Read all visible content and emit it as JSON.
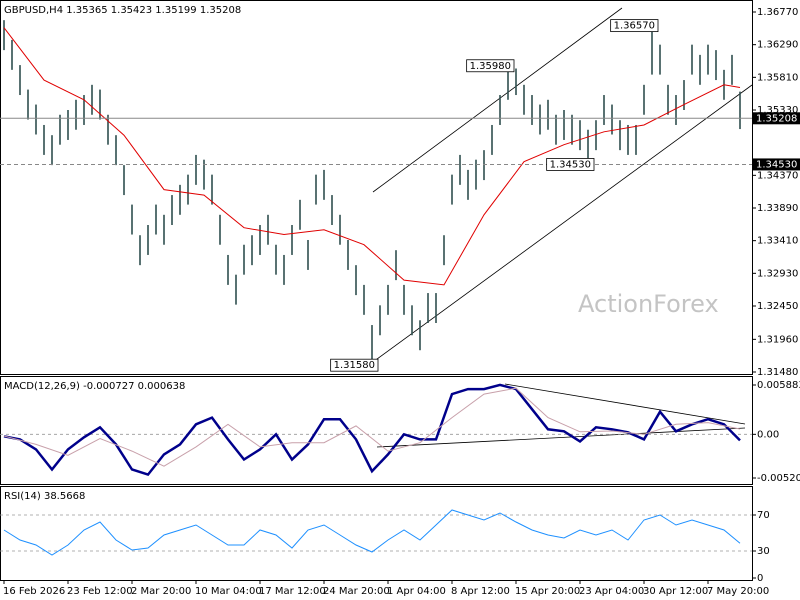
{
  "chart_data": [
    {
      "type": "hilo",
      "title": "GBPUSD,H4  1.35365 1.35423 1.35199 1.35208",
      "watermark": "ActionForex",
      "color": "#2f4f4f",
      "categories": [
        "16 Feb 2026",
        null,
        null,
        null,
        null,
        null,
        null,
        null,
        "23 Feb 12:00",
        null,
        null,
        null,
        null,
        null,
        null,
        null,
        "2 Mar 20:00",
        null,
        null,
        null,
        null,
        null,
        null,
        null,
        "10 Mar 04:00",
        null,
        null,
        null,
        null,
        null,
        null,
        null,
        "17 Mar 12:00",
        null,
        null,
        null,
        null,
        null,
        null,
        null,
        "24 Mar 20:00",
        null,
        null,
        null,
        null,
        null,
        null,
        null,
        "1 Apr 04:00",
        null,
        null,
        null,
        null,
        null,
        null,
        null,
        "8 Apr 12:00",
        null,
        null,
        null,
        null,
        null,
        null,
        null,
        "15 Apr 20:00",
        null,
        null,
        null,
        null,
        null,
        null,
        null,
        "23 Apr 04:00",
        null,
        null,
        null,
        null,
        null,
        null,
        null,
        "30 Apr 12:00",
        null,
        null,
        null,
        null,
        null,
        null,
        null,
        "7 May 20:00",
        null,
        null,
        null,
        null
      ],
      "high": [
        1.3665,
        1.3636,
        1.3599,
        1.3563,
        1.3541,
        1.3511,
        1.3496,
        1.3526,
        1.3533,
        1.3548,
        1.3555,
        1.357,
        1.3563,
        1.3526,
        1.3496,
        1.3452,
        1.3394,
        1.3349,
        1.3364,
        1.3394,
        1.3379,
        1.3408,
        1.3423,
        1.3438,
        1.3467,
        1.346,
        1.3438,
        1.3379,
        1.332,
        1.3291,
        1.3335,
        1.3349,
        1.3364,
        1.3379,
        1.3335,
        1.332,
        1.3364,
        1.3401,
        1.3342,
        1.3438,
        1.3445,
        1.3408,
        1.3379,
        1.3342,
        1.3305,
        1.3276,
        1.3217,
        1.3246,
        1.3276,
        1.3327,
        1.3276,
        1.3246,
        1.3224,
        1.3264,
        1.3264,
        1.3349,
        1.3438,
        1.3467,
        1.3445,
        1.346,
        1.3474,
        1.3511,
        1.3555,
        1.3598,
        1.3594,
        1.357,
        1.3555,
        1.3541,
        1.3548,
        1.3526,
        1.3533,
        1.3526,
        1.3518,
        1.3504,
        1.3518,
        1.3555,
        1.3541,
        1.3518,
        1.3511,
        1.3511,
        1.357,
        1.3657,
        1.3629,
        1.357,
        1.3555,
        1.3577,
        1.3629,
        1.3614,
        1.3629,
        1.3621,
        1.3592,
        1.3614,
        1.356
      ],
      "low": [
        1.3621,
        1.3592,
        1.3555,
        1.3519,
        1.3497,
        1.3467,
        1.3452,
        1.3482,
        1.3489,
        1.3504,
        1.3511,
        1.3526,
        1.3519,
        1.3482,
        1.3452,
        1.3408,
        1.335,
        1.3305,
        1.332,
        1.335,
        1.3335,
        1.3364,
        1.3379,
        1.3394,
        1.3423,
        1.3416,
        1.3394,
        1.3335,
        1.3276,
        1.3247,
        1.3291,
        1.3305,
        1.332,
        1.3335,
        1.3291,
        1.3276,
        1.332,
        1.3357,
        1.3298,
        1.3394,
        1.3401,
        1.3364,
        1.3335,
        1.3298,
        1.3261,
        1.3232,
        1.3158,
        1.3202,
        1.3232,
        1.3283,
        1.3232,
        1.3202,
        1.318,
        1.322,
        1.322,
        1.3305,
        1.3394,
        1.3423,
        1.3401,
        1.3416,
        1.343,
        1.3467,
        1.3511,
        1.3548,
        1.3555,
        1.3526,
        1.3511,
        1.3497,
        1.3504,
        1.3482,
        1.3489,
        1.3482,
        1.3474,
        1.3453,
        1.3474,
        1.3511,
        1.3497,
        1.3474,
        1.3467,
        1.3467,
        1.3526,
        1.3585,
        1.3585,
        1.3526,
        1.3511,
        1.3533,
        1.3585,
        1.357,
        1.3585,
        1.3577,
        1.3548,
        1.357,
        1.3505
      ],
      "overlays": [
        {
          "color": "#e00000",
          "x": [
            0,
            5,
            10,
            15,
            20,
            25,
            30,
            35,
            40,
            45,
            50,
            55,
            60,
            65,
            70,
            75,
            80,
            85,
            90,
            92
          ],
          "values": [
            1.3654,
            1.3577,
            1.3548,
            1.3496,
            1.3416,
            1.3408,
            1.336,
            1.335,
            1.3357,
            1.3335,
            1.3283,
            1.3276,
            1.3379,
            1.3457,
            1.3482,
            1.3501,
            1.3511,
            1.3541,
            1.357,
            1.3566
          ]
        }
      ],
      "ylim": [
        1.3148,
        1.36917
      ],
      "yticks": [
        {
          "value": 1.3677,
          "label": "1.36770"
        },
        {
          "value": 1.3629,
          "label": "1.36290"
        },
        {
          "value": 1.3581,
          "label": "1.35810"
        },
        {
          "value": 1.3533,
          "label": "1.35330"
        },
        {
          "value": 1.3437,
          "label": "1.34370"
        },
        {
          "value": 1.3389,
          "label": "1.33890"
        },
        {
          "value": 1.3341,
          "label": "1.33410"
        },
        {
          "value": 1.3293,
          "label": "1.32930"
        },
        {
          "value": 1.3245,
          "label": "1.32450"
        },
        {
          "value": 1.3196,
          "label": "1.31960"
        },
        {
          "value": 1.3148,
          "label": "1.31480"
        }
      ],
      "price_lines": [
        {
          "value": 1.35208,
          "label": "1.35208",
          "style": "solid"
        },
        {
          "value": 1.3453,
          "label": "1.34530",
          "style": "dashed"
        }
      ],
      "annotations": [
        {
          "x": 46,
          "value": 1.3158,
          "label": "1.31580"
        },
        {
          "x": 63,
          "value": 1.3598,
          "label": "1.35980"
        },
        {
          "x": 81,
          "value": 1.3657,
          "label": "1.36570"
        },
        {
          "x": 73,
          "value": 1.3453,
          "label": "1.34530"
        }
      ]
    },
    {
      "type": "line",
      "title": "MACD(12,26,9) -0.000727 0.000638",
      "series": [
        {
          "color": "#00008b",
          "x": [
            0,
            2,
            4,
            6,
            8,
            10,
            12,
            14,
            16,
            18,
            20,
            22,
            24,
            26,
            28,
            30,
            32,
            34,
            36,
            38,
            40,
            42,
            44,
            46,
            48,
            50,
            52,
            54,
            56,
            58,
            60,
            62,
            64,
            66,
            68,
            70,
            72,
            74,
            76,
            78,
            80,
            82,
            84,
            86,
            88,
            90,
            92
          ],
          "values": [
            -0.00024,
            -0.0006,
            -0.0018,
            -0.0042,
            -0.0018,
            -0.00036,
            0.00084,
            -0.0012,
            -0.0042,
            -0.0048,
            -0.0024,
            -0.0012,
            0.0012,
            0.002,
            -0.0006,
            -0.003,
            -0.0018,
            0,
            -0.003,
            -0.0012,
            0.0018,
            0.0018,
            -0.0006,
            -0.0044,
            -0.0024,
            0,
            -0.0006,
            -0.0006,
            0.0048,
            0.0054,
            0.0054,
            0.0059,
            0.0054,
            0.003,
            0.0006,
            0.00036,
            -0.00084,
            0.00084,
            0.0006,
            0.00024,
            -0.0006,
            0.0027,
            0.00036,
            0.0012,
            0.0018,
            0.0012,
            -0.000727
          ]
        },
        {
          "color": "#c8a0aa",
          "x": [
            0,
            4,
            8,
            12,
            16,
            20,
            24,
            28,
            32,
            36,
            40,
            44,
            48,
            52,
            56,
            60,
            64,
            68,
            72,
            76,
            80,
            84,
            88,
            92
          ],
          "values": [
            -0.0002,
            -0.0012,
            -0.0025,
            -0.0005,
            -0.002,
            -0.0038,
            -0.0015,
            0.0012,
            -0.0015,
            -0.001,
            -0.001,
            0.001,
            -0.002,
            -0.001,
            0.002,
            0.0048,
            0.0055,
            0.002,
            0.0003,
            0.0004,
            0,
            0.0012,
            0.0014,
            0.000638
          ]
        }
      ],
      "ylim": [
        -0.005686,
        0.006718
      ],
      "yticks": [
        {
          "value": 0.005883,
          "label": "0.005883"
        },
        {
          "value": 0,
          "label": "0.00"
        },
        {
          "value": -0.005209,
          "label": "-0.005209"
        }
      ],
      "levels": [
        0
      ]
    },
    {
      "type": "line",
      "title": "RSI(14) 38.5668",
      "series": [
        {
          "color": "#1e90ff",
          "x": [
            0,
            2,
            4,
            6,
            8,
            10,
            12,
            14,
            16,
            18,
            20,
            22,
            24,
            26,
            28,
            30,
            32,
            34,
            36,
            38,
            40,
            42,
            44,
            46,
            48,
            50,
            52,
            54,
            56,
            58,
            60,
            62,
            64,
            66,
            68,
            70,
            72,
            74,
            76,
            78,
            80,
            82,
            84,
            86,
            88,
            90,
            92
          ],
          "values": [
            53.3,
            42.2,
            36.7,
            25.6,
            36.7,
            53.3,
            62.2,
            42.2,
            31.1,
            33.3,
            47.8,
            53.3,
            58.9,
            47.8,
            36.7,
            36.7,
            53.3,
            47.8,
            33.3,
            53.3,
            58.9,
            47.8,
            36.7,
            28.9,
            42.2,
            53.3,
            42.2,
            58.9,
            75.6,
            70,
            64.4,
            72.2,
            62.2,
            53.3,
            47.8,
            44.4,
            53.3,
            47.8,
            53.3,
            42.2,
            64.4,
            70,
            58.9,
            64.4,
            58.9,
            53.3,
            38.5668
          ]
        }
      ],
      "ylim": [
        0,
        100
      ],
      "yticks": [
        70,
        30,
        0
      ],
      "levels": [
        70,
        30
      ]
    }
  ]
}
